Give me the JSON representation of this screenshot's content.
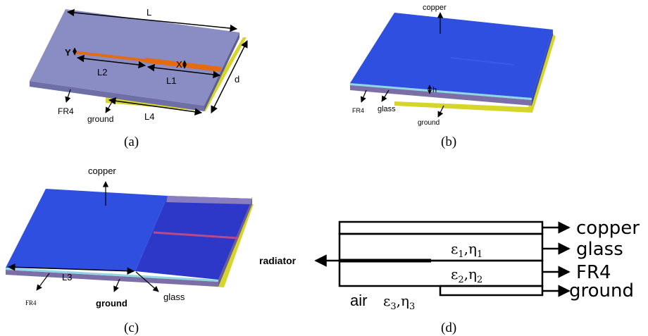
{
  "panel_a": {
    "caption": "(a)",
    "dim_L": "L",
    "dim_L1": "L1",
    "dim_L2": "L2",
    "dim_L4": "L4",
    "dim_d": "d",
    "dim_X": "X",
    "dim_Y": "Y",
    "label_fr4": "FR4",
    "label_ground": "ground"
  },
  "panel_b": {
    "caption": "(b)",
    "label_copper": "copper",
    "dim_h": "h",
    "label_fr4": "FR4",
    "label_glass": "glass",
    "label_ground": "ground"
  },
  "panel_c": {
    "caption": "(c)",
    "label_copper": "copper",
    "dim_L3": "L3",
    "label_fr4": "FR4",
    "label_ground": "ground",
    "label_glass": "glass"
  },
  "panel_d": {
    "caption": "(d)",
    "label_copper": "copper",
    "label_glass": "glass",
    "label_fr4": "FR4",
    "label_ground": "ground",
    "label_radiator": "radiator",
    "label_air": "air",
    "eps1": "ε",
    "eps1_sub": "1",
    "eta1": ",η",
    "eta1_sub": "1",
    "eps2": "ε",
    "eps2_sub": "2",
    "eta2": ",η",
    "eta2_sub": "2",
    "eps3": "ε",
    "eps3_sub": "3",
    "eta3": ",η",
    "eta3_sub": "3"
  },
  "colors": {
    "fr4_top": "#8a8cc4",
    "fr4_side": "#6d6fa6",
    "copper_top": "#2f4fe0",
    "copper_dark": "#2a3fc8",
    "glass": "#8fd7e6",
    "ground": "#d6d62a",
    "feed": "#e36b12",
    "strip_red": "#b84a8a"
  }
}
